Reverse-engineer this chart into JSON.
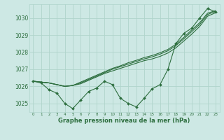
{
  "xlabel": "Graphe pression niveau de la mer (hPa)",
  "bg_color": "#cde8e4",
  "grid_color": "#b0d4cc",
  "line_color": "#2d6e3e",
  "ylim": [
    1024.5,
    1030.8
  ],
  "xlim": [
    -0.5,
    23.5
  ],
  "yticks": [
    1025,
    1026,
    1027,
    1028,
    1029,
    1030
  ],
  "xticks": [
    0,
    1,
    2,
    3,
    4,
    5,
    6,
    7,
    8,
    9,
    10,
    11,
    12,
    13,
    14,
    15,
    16,
    17,
    18,
    19,
    20,
    21,
    22,
    23
  ],
  "series1": [
    1026.3,
    1026.2,
    1025.8,
    1025.6,
    1025.0,
    1024.7,
    1025.2,
    1025.7,
    1025.9,
    1026.3,
    1026.1,
    1025.3,
    1025.0,
    1024.8,
    1025.3,
    1025.85,
    1026.1,
    1027.0,
    1028.5,
    1029.1,
    1029.4,
    1030.0,
    1030.55,
    1030.35
  ],
  "series2": [
    1026.3,
    1026.25,
    1026.2,
    1026.1,
    1026.0,
    1026.05,
    1026.15,
    1026.35,
    1026.55,
    1026.75,
    1026.9,
    1027.05,
    1027.2,
    1027.35,
    1027.5,
    1027.6,
    1027.75,
    1027.95,
    1028.25,
    1028.65,
    1029.05,
    1029.5,
    1030.1,
    1030.3
  ],
  "series3": [
    1026.3,
    1026.25,
    1026.2,
    1026.1,
    1026.0,
    1026.05,
    1026.2,
    1026.4,
    1026.6,
    1026.8,
    1027.0,
    1027.15,
    1027.3,
    1027.45,
    1027.6,
    1027.72,
    1027.88,
    1028.08,
    1028.38,
    1028.78,
    1029.2,
    1029.62,
    1030.2,
    1030.38
  ],
  "series4": [
    1026.3,
    1026.25,
    1026.2,
    1026.1,
    1026.0,
    1026.05,
    1026.25,
    1026.45,
    1026.65,
    1026.85,
    1027.05,
    1027.2,
    1027.38,
    1027.52,
    1027.68,
    1027.8,
    1027.96,
    1028.16,
    1028.46,
    1028.86,
    1029.3,
    1029.72,
    1030.28,
    1030.42
  ]
}
